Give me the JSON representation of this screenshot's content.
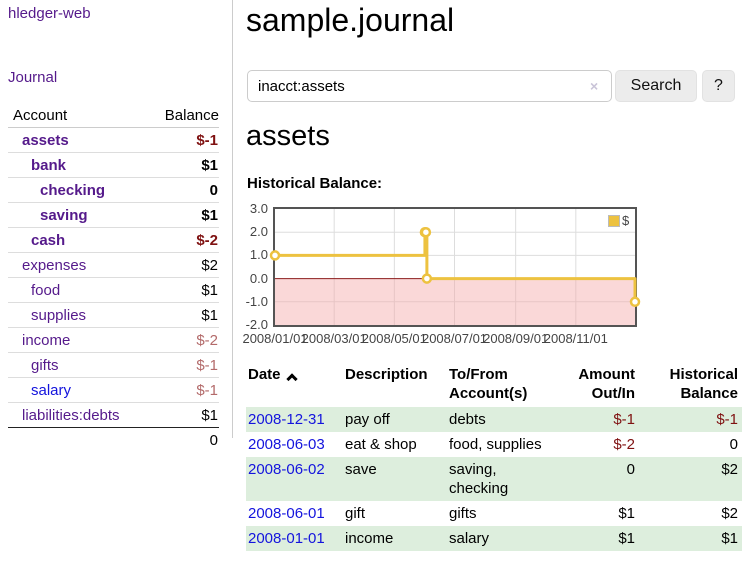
{
  "app": {
    "title": "hledger-web",
    "nav_journal": "Journal"
  },
  "sidebar": {
    "columns": {
      "account": "Account",
      "balance": "Balance"
    },
    "accounts": [
      {
        "name": "assets",
        "indent": 0,
        "bold": true,
        "link_color": "purple",
        "balance": "$-1",
        "bal_style": "negstrong"
      },
      {
        "name": "bank",
        "indent": 1,
        "bold": true,
        "link_color": "purple",
        "balance": "$1",
        "bal_style": "normal"
      },
      {
        "name": "checking",
        "indent": 2,
        "bold": true,
        "link_color": "purple",
        "balance": "0",
        "bal_style": "normal"
      },
      {
        "name": "saving",
        "indent": 2,
        "bold": true,
        "link_color": "purple",
        "balance": "$1",
        "bal_style": "normal"
      },
      {
        "name": "cash",
        "indent": 1,
        "bold": true,
        "link_color": "purple",
        "balance": "$-2",
        "bal_style": "negstrong"
      },
      {
        "name": "expenses",
        "indent": 0,
        "bold": false,
        "link_color": "purple",
        "balance": "$2",
        "bal_style": "normal"
      },
      {
        "name": "food",
        "indent": 1,
        "bold": false,
        "link_color": "purple",
        "balance": "$1",
        "bal_style": "normal"
      },
      {
        "name": "supplies",
        "indent": 1,
        "bold": false,
        "link_color": "purple",
        "balance": "$1",
        "bal_style": "normal"
      },
      {
        "name": "income",
        "indent": 0,
        "bold": false,
        "link_color": "purple",
        "balance": "$-2",
        "bal_style": "negsoft"
      },
      {
        "name": "gifts",
        "indent": 1,
        "bold": false,
        "link_color": "purple",
        "balance": "$-1",
        "bal_style": "negsoft"
      },
      {
        "name": "salary",
        "indent": 1,
        "bold": false,
        "link_color": "blue",
        "balance": "$-1",
        "bal_style": "negsoft"
      },
      {
        "name": "liabilities:debts",
        "indent": 0,
        "bold": false,
        "link_color": "purple",
        "balance": "$1",
        "bal_style": "normal",
        "last": true
      }
    ],
    "total": "0"
  },
  "header": {
    "title": "sample.journal"
  },
  "search": {
    "value": "inacct:assets",
    "clear_icon": "×",
    "button": "Search",
    "help_button": "?"
  },
  "account_page": {
    "heading": "assets",
    "chart_label": "Historical Balance:"
  },
  "chart_data": {
    "type": "line",
    "style": "step",
    "title": "Historical Balance:",
    "series": [
      {
        "name": "$",
        "color": "#EDC240",
        "points": [
          [
            "2008-01-01",
            1
          ],
          [
            "2008-06-01",
            2
          ],
          [
            "2008-06-02",
            2
          ],
          [
            "2008-06-03",
            0
          ],
          [
            "2008-12-31",
            -1
          ]
        ]
      }
    ],
    "ylim": [
      -2,
      3
    ],
    "yticks": [
      "3.0",
      "2.0",
      "1.0",
      "0.0",
      "-1.0",
      "-2.0"
    ],
    "ytick_values": [
      3,
      2,
      1,
      0,
      -1,
      -2
    ],
    "xticks": [
      "2008/01/01",
      "2008/03/01",
      "2008/05/01",
      "2008/07/01",
      "2008/09/01",
      "2008/11/01"
    ],
    "xtick_days": [
      0,
      60,
      121,
      182,
      244,
      305
    ],
    "x_range_days": 365,
    "grid": true,
    "legend": {
      "label": "$",
      "position": "top-right"
    },
    "colors": {
      "line": "#EDC240",
      "negative_region": "rgba(244,168,168,0.45)",
      "zero_line": "#8b1c1c",
      "gridline": "#dddddd",
      "border": "#545454"
    }
  },
  "table": {
    "headers": [
      {
        "label": "Date",
        "sorted": "asc",
        "align": "left"
      },
      {
        "label": "Description",
        "align": "left"
      },
      {
        "label": "To/From\nAccount(s)",
        "align": "left"
      },
      {
        "label": "Amount\nOut/In",
        "align": "right"
      },
      {
        "label": "Historical\nBalance",
        "align": "right"
      }
    ],
    "rows": [
      {
        "date": "2008-12-31",
        "description": "pay off",
        "accounts": "debts",
        "amount": "$-1",
        "amount_negative": true,
        "balance": "$-1",
        "balance_negative": true,
        "shaded": true
      },
      {
        "date": "2008-06-03",
        "description": "eat & shop",
        "accounts": "food, supplies",
        "amount": "$-2",
        "amount_negative": true,
        "balance": "0",
        "balance_negative": false,
        "shaded": false
      },
      {
        "date": "2008-06-02",
        "description": "save",
        "accounts": "saving, checking",
        "amount": "0",
        "amount_negative": false,
        "balance": "$2",
        "balance_negative": false,
        "shaded": true
      },
      {
        "date": "2008-06-01",
        "description": "gift",
        "accounts": "gifts",
        "amount": "$1",
        "amount_negative": false,
        "balance": "$2",
        "balance_negative": false,
        "shaded": false
      },
      {
        "date": "2008-01-01",
        "description": "income",
        "accounts": "salary",
        "amount": "$1",
        "amount_negative": false,
        "balance": "$1",
        "balance_negative": false,
        "shaded": true
      }
    ]
  }
}
